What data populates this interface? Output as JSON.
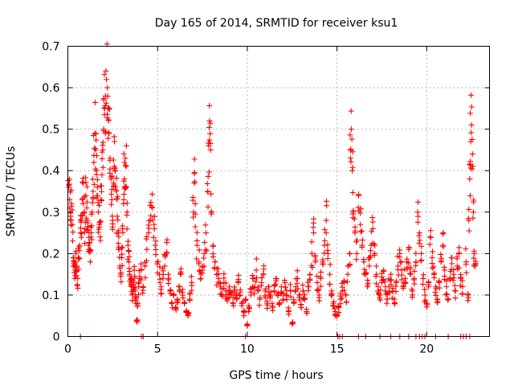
{
  "chart_data": {
    "type": "scatter",
    "title": "Day 165 of 2014, SRMTID for receiver ksu1",
    "xlabel": "GPS time / hours",
    "ylabel": "SRMTID / TECUs",
    "xlim": [
      0,
      23.5
    ],
    "ylim": [
      0,
      0.7
    ],
    "xticks": [
      0,
      5,
      10,
      15,
      20
    ],
    "xtick_labels": [
      "0",
      "5",
      "10",
      "15",
      "20"
    ],
    "yticks": [
      0,
      0.1,
      0.2,
      0.3,
      0.4,
      0.5,
      0.6,
      0.7
    ],
    "ytick_labels": [
      "0",
      "0.1",
      "0.2",
      "0.3",
      "0.4",
      "0.5",
      "0.6",
      "0.7"
    ],
    "grid": true,
    "marker": "+",
    "color": "#ff0000",
    "series": [
      {
        "name": "SRMTID",
        "points": [
          [
            0.05,
            0.36
          ],
          [
            0.1,
            0.33
          ],
          [
            0.15,
            0.29
          ],
          [
            0.2,
            0.32
          ],
          [
            0.25,
            0.27
          ],
          [
            0.3,
            0.19
          ],
          [
            0.35,
            0.18
          ],
          [
            0.4,
            0.16
          ],
          [
            0.45,
            0.2
          ],
          [
            0.5,
            0.17
          ],
          [
            0.55,
            0.14
          ],
          [
            0.6,
            0.19
          ],
          [
            0.65,
            0.22
          ],
          [
            0.7,
            0.25
          ],
          [
            0.75,
            0.28
          ],
          [
            0.8,
            0.33
          ],
          [
            0.85,
            0.37
          ],
          [
            0.9,
            0.3
          ],
          [
            0.95,
            0.26
          ],
          [
            1.0,
            0.34
          ],
          [
            1.05,
            0.31
          ],
          [
            1.1,
            0.28
          ],
          [
            1.15,
            0.22
          ],
          [
            1.2,
            0.21
          ],
          [
            1.25,
            0.18
          ],
          [
            1.3,
            0.25
          ],
          [
            1.35,
            0.3
          ],
          [
            1.4,
            0.35
          ],
          [
            1.45,
            0.42
          ],
          [
            1.5,
            0.49
          ],
          [
            1.55,
            0.45
          ],
          [
            1.6,
            0.4
          ],
          [
            1.65,
            0.36
          ],
          [
            1.7,
            0.3
          ],
          [
            1.75,
            0.27
          ],
          [
            1.8,
            0.24
          ],
          [
            1.85,
            0.33
          ],
          [
            1.9,
            0.39
          ],
          [
            1.95,
            0.45
          ],
          [
            2.0,
            0.5
          ],
          [
            2.05,
            0.55
          ],
          [
            2.1,
            0.58
          ],
          [
            2.15,
            0.62
          ],
          [
            2.2,
            0.6
          ],
          [
            2.25,
            0.55
          ],
          [
            2.3,
            0.49
          ],
          [
            2.35,
            0.43
          ],
          [
            2.4,
            0.38
          ],
          [
            2.45,
            0.33
          ],
          [
            2.5,
            0.28
          ],
          [
            2.55,
            0.37
          ],
          [
            2.6,
            0.47
          ],
          [
            2.65,
            0.4
          ],
          [
            2.7,
            0.35
          ],
          [
            2.75,
            0.29
          ],
          [
            2.8,
            0.25
          ],
          [
            2.85,
            0.21
          ],
          [
            2.9,
            0.17
          ],
          [
            2.95,
            0.15
          ],
          [
            3.0,
            0.19
          ],
          [
            3.05,
            0.26
          ],
          [
            3.1,
            0.32
          ],
          [
            3.15,
            0.38
          ],
          [
            3.2,
            0.43
          ],
          [
            3.25,
            0.41
          ],
          [
            3.3,
            0.3
          ],
          [
            3.35,
            0.22
          ],
          [
            3.4,
            0.18
          ],
          [
            3.45,
            0.15
          ],
          [
            3.5,
            0.14
          ],
          [
            3.55,
            0.12
          ],
          [
            3.6,
            0.1
          ],
          [
            3.65,
            0.13
          ],
          [
            3.7,
            0.16
          ],
          [
            3.75,
            0.11
          ],
          [
            3.8,
            0.09
          ],
          [
            3.85,
            0.04
          ],
          [
            3.9,
            0.08
          ],
          [
            3.95,
            0.12
          ],
          [
            4.0,
            0.14
          ],
          [
            4.1,
            0.16
          ],
          [
            4.2,
            0.12
          ],
          [
            4.3,
            0.17
          ],
          [
            4.4,
            0.21
          ],
          [
            4.5,
            0.25
          ],
          [
            4.6,
            0.28
          ],
          [
            4.7,
            0.31
          ],
          [
            4.8,
            0.27
          ],
          [
            4.9,
            0.23
          ],
          [
            5.0,
            0.18
          ],
          [
            5.1,
            0.15
          ],
          [
            5.2,
            0.12
          ],
          [
            5.3,
            0.14
          ],
          [
            5.4,
            0.17
          ],
          [
            5.5,
            0.2
          ],
          [
            5.6,
            0.15
          ],
          [
            5.7,
            0.11
          ],
          [
            5.8,
            0.08
          ],
          [
            5.9,
            0.1
          ],
          [
            6.0,
            0.07
          ],
          [
            6.1,
            0.09
          ],
          [
            6.2,
            0.12
          ],
          [
            6.3,
            0.15
          ],
          [
            6.4,
            0.1
          ],
          [
            6.5,
            0.08
          ],
          [
            6.6,
            0.06
          ],
          [
            6.7,
            0.05
          ],
          [
            6.8,
            0.09
          ],
          [
            6.9,
            0.13
          ],
          [
            7.0,
            0.3
          ],
          [
            7.05,
            0.37
          ],
          [
            7.1,
            0.32
          ],
          [
            7.2,
            0.22
          ],
          [
            7.3,
            0.18
          ],
          [
            7.4,
            0.14
          ],
          [
            7.5,
            0.16
          ],
          [
            7.6,
            0.2
          ],
          [
            7.7,
            0.25
          ],
          [
            7.8,
            0.35
          ],
          [
            7.85,
            0.46
          ],
          [
            7.9,
            0.52
          ],
          [
            7.95,
            0.45
          ],
          [
            8.0,
            0.3
          ],
          [
            8.1,
            0.22
          ],
          [
            8.2,
            0.18
          ],
          [
            8.3,
            0.15
          ],
          [
            8.4,
            0.14
          ],
          [
            8.5,
            0.12
          ],
          [
            8.6,
            0.1
          ],
          [
            8.7,
            0.13
          ],
          [
            8.8,
            0.11
          ],
          [
            8.9,
            0.09
          ],
          [
            9.0,
            0.12
          ],
          [
            9.1,
            0.1
          ],
          [
            9.2,
            0.08
          ],
          [
            9.3,
            0.11
          ],
          [
            9.4,
            0.09
          ],
          [
            9.5,
            0.13
          ],
          [
            9.6,
            0.1
          ],
          [
            9.7,
            0.08
          ],
          [
            9.8,
            0.06
          ],
          [
            9.9,
            0.09
          ],
          [
            10.0,
            0.03
          ],
          [
            10.1,
            0.07
          ],
          [
            10.2,
            0.1
          ],
          [
            10.3,
            0.14
          ],
          [
            10.4,
            0.12
          ],
          [
            10.5,
            0.16
          ],
          [
            10.6,
            0.11
          ],
          [
            10.7,
            0.09
          ],
          [
            10.8,
            0.13
          ],
          [
            10.9,
            0.15
          ],
          [
            11.0,
            0.11
          ],
          [
            11.1,
            0.08
          ],
          [
            11.2,
            0.12
          ],
          [
            11.3,
            0.1
          ],
          [
            11.4,
            0.07
          ],
          [
            11.5,
            0.11
          ],
          [
            11.6,
            0.14
          ],
          [
            11.7,
            0.1
          ],
          [
            11.8,
            0.08
          ],
          [
            11.9,
            0.12
          ],
          [
            12.0,
            0.09
          ],
          [
            12.1,
            0.13
          ],
          [
            12.2,
            0.1
          ],
          [
            12.3,
            0.06
          ],
          [
            12.4,
            0.11
          ],
          [
            12.5,
            0.03
          ],
          [
            12.6,
            0.08
          ],
          [
            12.7,
            0.12
          ],
          [
            12.8,
            0.14
          ],
          [
            12.9,
            0.1
          ],
          [
            13.0,
            0.07
          ],
          [
            13.1,
            0.11
          ],
          [
            13.2,
            0.09
          ],
          [
            13.3,
            0.06
          ],
          [
            13.4,
            0.12
          ],
          [
            13.5,
            0.15
          ],
          [
            13.6,
            0.2
          ],
          [
            13.7,
            0.25
          ],
          [
            13.8,
            0.18
          ],
          [
            13.9,
            0.13
          ],
          [
            14.0,
            0.1
          ],
          [
            14.1,
            0.14
          ],
          [
            14.2,
            0.18
          ],
          [
            14.3,
            0.22
          ],
          [
            14.4,
            0.28
          ],
          [
            14.5,
            0.2
          ],
          [
            14.6,
            0.15
          ],
          [
            14.7,
            0.11
          ],
          [
            14.8,
            0.08
          ],
          [
            14.9,
            0.06
          ],
          [
            15.0,
            0.05
          ],
          [
            15.1,
            0.07
          ],
          [
            15.2,
            0.09
          ],
          [
            15.3,
            0.11
          ],
          [
            15.4,
            0.13
          ],
          [
            15.5,
            0.1
          ],
          [
            15.6,
            0.15
          ],
          [
            15.7,
            0.2
          ],
          [
            15.75,
            0.43
          ],
          [
            15.8,
            0.5
          ],
          [
            15.85,
            0.4
          ],
          [
            15.9,
            0.3
          ],
          [
            16.0,
            0.25
          ],
          [
            16.1,
            0.2
          ],
          [
            16.2,
            0.34
          ],
          [
            16.3,
            0.27
          ],
          [
            16.4,
            0.22
          ],
          [
            16.5,
            0.18
          ],
          [
            16.6,
            0.15
          ],
          [
            16.7,
            0.12
          ],
          [
            16.8,
            0.17
          ],
          [
            16.9,
            0.22
          ],
          [
            17.0,
            0.26
          ],
          [
            17.1,
            0.2
          ],
          [
            17.2,
            0.15
          ],
          [
            17.3,
            0.12
          ],
          [
            17.4,
            0.1
          ],
          [
            17.5,
            0.13
          ],
          [
            17.6,
            0.16
          ],
          [
            17.7,
            0.12
          ],
          [
            17.8,
            0.09
          ],
          [
            17.9,
            0.12
          ],
          [
            18.0,
            0.15
          ],
          [
            18.1,
            0.11
          ],
          [
            18.2,
            0.08
          ],
          [
            18.3,
            0.13
          ],
          [
            18.4,
            0.17
          ],
          [
            18.5,
            0.2
          ],
          [
            18.6,
            0.16
          ],
          [
            18.7,
            0.12
          ],
          [
            18.8,
            0.14
          ],
          [
            18.9,
            0.18
          ],
          [
            19.0,
            0.21
          ],
          [
            19.1,
            0.15
          ],
          [
            19.2,
            0.11
          ],
          [
            19.3,
            0.14
          ],
          [
            19.4,
            0.18
          ],
          [
            19.5,
            0.3
          ],
          [
            19.6,
            0.25
          ],
          [
            19.7,
            0.2
          ],
          [
            19.8,
            0.14
          ],
          [
            19.9,
            0.1
          ],
          [
            20.0,
            0.08
          ],
          [
            20.1,
            0.12
          ],
          [
            20.2,
            0.24
          ],
          [
            20.3,
            0.19
          ],
          [
            20.4,
            0.15
          ],
          [
            20.5,
            0.12
          ],
          [
            20.6,
            0.09
          ],
          [
            20.7,
            0.13
          ],
          [
            20.8,
            0.18
          ],
          [
            20.9,
            0.22
          ],
          [
            21.0,
            0.16
          ],
          [
            21.1,
            0.12
          ],
          [
            21.2,
            0.09
          ],
          [
            21.3,
            0.14
          ],
          [
            21.4,
            0.19
          ],
          [
            21.5,
            0.15
          ],
          [
            21.6,
            0.11
          ],
          [
            21.7,
            0.17
          ],
          [
            21.8,
            0.2
          ],
          [
            21.9,
            0.14
          ],
          [
            22.0,
            0.12
          ],
          [
            22.2,
            0.18
          ],
          [
            22.3,
            0.1
          ],
          [
            22.35,
            0.28
          ],
          [
            22.4,
            0.38
          ],
          [
            22.45,
            0.47
          ],
          [
            22.5,
            0.51
          ],
          [
            22.55,
            0.44
          ],
          [
            22.6,
            0.3
          ],
          [
            22.65,
            0.2
          ],
          [
            22.7,
            0.17
          ]
        ]
      }
    ],
    "zero_points_x": [
      0.7,
      4.1,
      4.2,
      9.9,
      15.05,
      15.15,
      15.3,
      16.2,
      16.6,
      17.4,
      18.0,
      18.5,
      19.0,
      19.4,
      19.6,
      19.75,
      19.9,
      20.5,
      21.2,
      21.9,
      22.05,
      22.2,
      22.4
    ]
  }
}
